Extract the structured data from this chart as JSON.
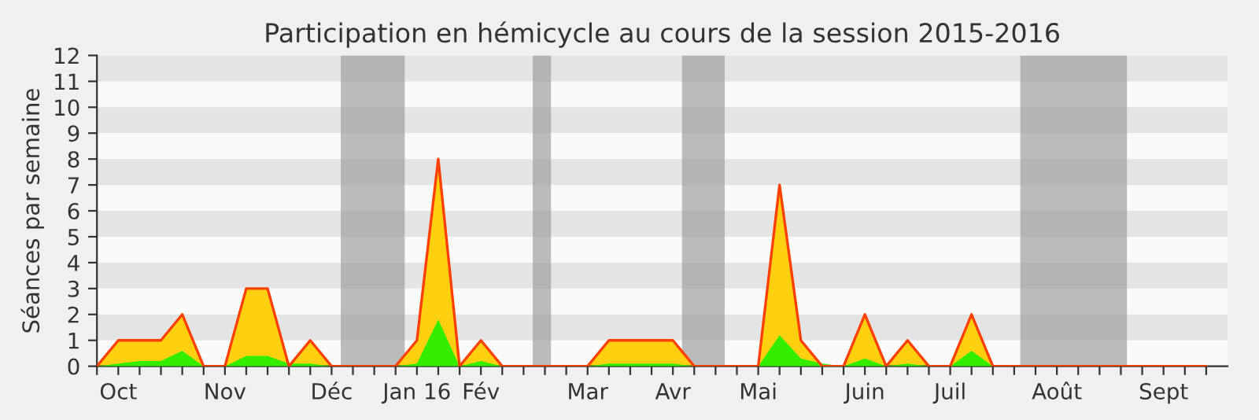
{
  "chart_data": {
    "type": "area",
    "title": "Participation en hémicycle au cours de la session 2015-2016",
    "ylabel": "Séances par semaine",
    "x": [
      "2015-09-28",
      "2015-10-05",
      "2015-10-12",
      "2015-10-19",
      "2015-10-26",
      "2015-11-02",
      "2015-11-09",
      "2015-11-16",
      "2015-11-23",
      "2015-11-30",
      "2015-12-07",
      "2015-12-14",
      "2015-12-21",
      "2015-12-28",
      "2016-01-04",
      "2016-01-11",
      "2016-01-18",
      "2016-01-25",
      "2016-02-01",
      "2016-02-08",
      "2016-02-15",
      "2016-02-22",
      "2016-02-29",
      "2016-03-07",
      "2016-03-14",
      "2016-03-21",
      "2016-03-28",
      "2016-04-04",
      "2016-04-11",
      "2016-04-18",
      "2016-04-25",
      "2016-05-02",
      "2016-05-09",
      "2016-05-16",
      "2016-05-23",
      "2016-05-30",
      "2016-06-06",
      "2016-06-13",
      "2016-06-20",
      "2016-06-27",
      "2016-07-04",
      "2016-07-11",
      "2016-07-18",
      "2016-07-25",
      "2016-08-01",
      "2016-08-08",
      "2016-08-15",
      "2016-08-22",
      "2016-08-29",
      "2016-09-05",
      "2016-09-12",
      "2016-09-19",
      "2016-09-26"
    ],
    "series": [
      {
        "color": "#ffd010",
        "values": [
          0,
          1,
          1,
          1,
          2,
          0,
          0,
          3,
          3,
          0,
          1,
          0,
          0,
          0,
          0,
          1,
          8,
          0,
          1,
          0,
          0,
          0,
          0,
          0,
          1,
          1,
          1,
          1,
          0,
          0,
          0,
          0,
          7,
          1,
          0,
          0,
          2,
          0,
          1,
          0,
          0,
          2,
          0,
          0,
          0,
          0,
          0,
          0,
          0,
          0,
          0,
          0,
          0
        ]
      },
      {
        "color": "#33ee00",
        "values": [
          0,
          0.1,
          0.2,
          0.2,
          0.6,
          0,
          0,
          0.4,
          0.4,
          0.1,
          0.1,
          0,
          0,
          0,
          0,
          0.1,
          1.8,
          0,
          0.2,
          0,
          0,
          0,
          0,
          0,
          0.1,
          0.1,
          0.1,
          0.1,
          0,
          0,
          0,
          0,
          1.2,
          0.3,
          0.1,
          0,
          0.3,
          0,
          0.1,
          0,
          0,
          0.6,
          0,
          0,
          0,
          0,
          0,
          0,
          0,
          0,
          0,
          0,
          0
        ]
      }
    ],
    "xlim": [
      "2015-09-28",
      "2016-10-03"
    ],
    "xticks": [
      {
        "value": "2015-09-28",
        "label": null
      },
      {
        "value": "2015-10-05",
        "label": "Oct"
      },
      {
        "value": "2015-10-12",
        "label": null
      },
      {
        "value": "2015-10-19",
        "label": null
      },
      {
        "value": "2015-10-26",
        "label": null
      },
      {
        "value": "2015-11-02",
        "label": null
      },
      {
        "value": "2015-11-09",
        "label": "Nov"
      },
      {
        "value": "2015-11-16",
        "label": null
      },
      {
        "value": "2015-11-23",
        "label": null
      },
      {
        "value": "2015-11-30",
        "label": null
      },
      {
        "value": "2015-12-07",
        "label": null
      },
      {
        "value": "2015-12-14",
        "label": "Déc"
      },
      {
        "value": "2015-12-21",
        "label": null
      },
      {
        "value": "2015-12-28",
        "label": null
      },
      {
        "value": "2016-01-04",
        "label": null
      },
      {
        "value": "2016-01-11",
        "label": "Jan 16"
      },
      {
        "value": "2016-01-18",
        "label": null
      },
      {
        "value": "2016-01-25",
        "label": null
      },
      {
        "value": "2016-02-01",
        "label": "Fév"
      },
      {
        "value": "2016-02-08",
        "label": null
      },
      {
        "value": "2016-02-15",
        "label": null
      },
      {
        "value": "2016-02-22",
        "label": null
      },
      {
        "value": "2016-02-29",
        "label": null
      },
      {
        "value": "2016-03-07",
        "label": "Mar"
      },
      {
        "value": "2016-03-14",
        "label": null
      },
      {
        "value": "2016-03-21",
        "label": null
      },
      {
        "value": "2016-03-28",
        "label": null
      },
      {
        "value": "2016-04-04",
        "label": "Avr"
      },
      {
        "value": "2016-04-11",
        "label": null
      },
      {
        "value": "2016-04-18",
        "label": null
      },
      {
        "value": "2016-04-25",
        "label": null
      },
      {
        "value": "2016-05-02",
        "label": "Mai"
      },
      {
        "value": "2016-05-09",
        "label": null
      },
      {
        "value": "2016-05-16",
        "label": null
      },
      {
        "value": "2016-05-23",
        "label": null
      },
      {
        "value": "2016-05-30",
        "label": null
      },
      {
        "value": "2016-06-06",
        "label": "Juin"
      },
      {
        "value": "2016-06-13",
        "label": null
      },
      {
        "value": "2016-06-20",
        "label": null
      },
      {
        "value": "2016-06-27",
        "label": null
      },
      {
        "value": "2016-07-04",
        "label": "Juil"
      },
      {
        "value": "2016-07-11",
        "label": null
      },
      {
        "value": "2016-07-18",
        "label": null
      },
      {
        "value": "2016-07-25",
        "label": null
      },
      {
        "value": "2016-08-01",
        "label": null
      },
      {
        "value": "2016-08-08",
        "label": "Août"
      },
      {
        "value": "2016-08-15",
        "label": null
      },
      {
        "value": "2016-08-22",
        "label": null
      },
      {
        "value": "2016-08-29",
        "label": null
      },
      {
        "value": "2016-09-05",
        "label": null
      },
      {
        "value": "2016-09-12",
        "label": "Sept"
      },
      {
        "value": "2016-09-19",
        "label": null
      },
      {
        "value": "2016-09-26",
        "label": null
      }
    ],
    "ylim": [
      0,
      12
    ],
    "yticks": [
      0,
      1,
      2,
      3,
      4,
      5,
      6,
      7,
      8,
      9,
      10,
      11,
      12
    ],
    "bands": [
      {
        "axis": "x",
        "from": "2015-12-17",
        "to": "2016-01-07",
        "color": "#a0a0a0"
      },
      {
        "axis": "x",
        "from": "2016-02-18",
        "to": "2016-02-24",
        "color": "#a0a0a0"
      },
      {
        "axis": "x",
        "from": "2016-04-07",
        "to": "2016-04-21",
        "color": "#a0a0a0"
      },
      {
        "axis": "x",
        "from": "2016-07-27",
        "to": "2016-08-31",
        "color": "#a0a0a0"
      }
    ]
  }
}
